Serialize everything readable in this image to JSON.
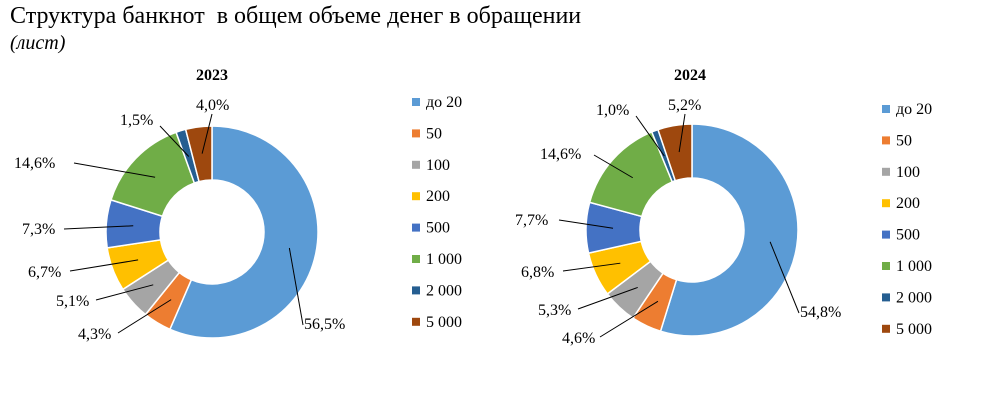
{
  "title": "Структура банкнот  в общем объеме денег в обращении",
  "subtitle": "(лист)",
  "chart_data": [
    {
      "type": "donut",
      "title": "2023",
      "categories": [
        "до 20",
        "50",
        "100",
        "200",
        "500",
        "1 000",
        "2 000",
        "5 000"
      ],
      "values": [
        56.5,
        4.3,
        5.1,
        6.7,
        7.3,
        14.6,
        1.5,
        4.0
      ],
      "labels": [
        "56,5%",
        "4,3%",
        "5,1%",
        "6,7%",
        "7,3%",
        "14,6%",
        "1,5%",
        "4,0%"
      ],
      "colors": [
        "#5B9BD5",
        "#ED7D31",
        "#A5A5A5",
        "#FFC000",
        "#4472C4",
        "#70AD47",
        "#255E91",
        "#9E480E"
      ],
      "legend_position": "right",
      "legend": [
        "до 20",
        "50",
        "100",
        "200",
        "500",
        "1 000",
        "2 000",
        "5 000"
      ]
    },
    {
      "type": "donut",
      "title": "2024",
      "categories": [
        "до 20",
        "50",
        "100",
        "200",
        "500",
        "1 000",
        "2 000",
        "5 000"
      ],
      "values": [
        54.8,
        4.6,
        5.3,
        6.8,
        7.7,
        14.6,
        1.0,
        5.2
      ],
      "labels": [
        "54,8%",
        "4,6%",
        "5,3%",
        "6,8%",
        "7,7%",
        "14,6%",
        "1,0%",
        "5,2%"
      ],
      "colors": [
        "#5B9BD5",
        "#ED7D31",
        "#A5A5A5",
        "#FFC000",
        "#4472C4",
        "#70AD47",
        "#255E91",
        "#9E480E"
      ],
      "legend_position": "right",
      "legend": [
        "до 20",
        "50",
        "100",
        "200",
        "500",
        "1 000",
        "2 000",
        "5 000"
      ]
    }
  ]
}
